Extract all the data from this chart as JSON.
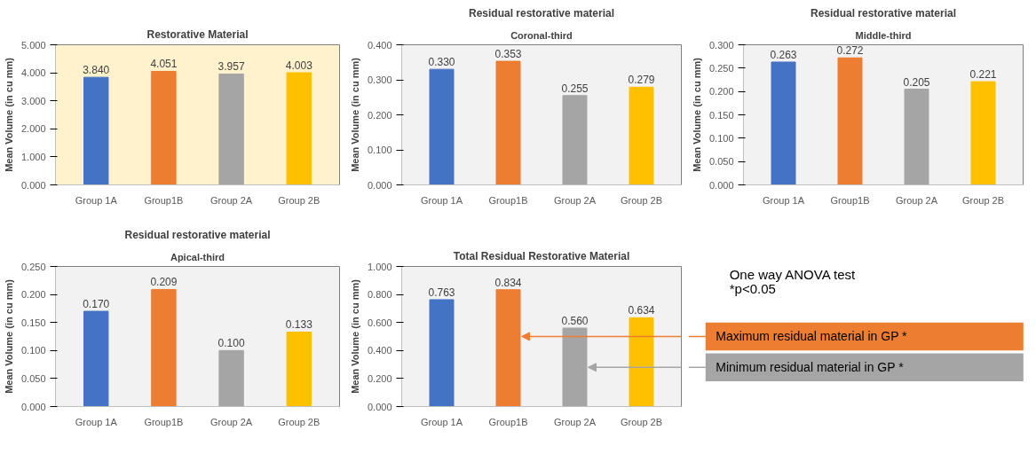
{
  "chart_data": [
    {
      "type": "bar",
      "title": "Restorative Material",
      "ylabel": "Mean Volume (in cu mm)",
      "categories": [
        "Group 1A",
        "Group1B",
        "Group 2A",
        "Group 2B"
      ],
      "values": [
        3.84,
        4.051,
        3.957,
        4.003
      ],
      "colors": [
        "#4472c4",
        "#ed7d31",
        "#a5a5a5",
        "#ffc000"
      ],
      "value_labels": [
        "3.840",
        "4.051",
        "3.957",
        "4.003"
      ],
      "ylim": [
        0,
        5
      ],
      "yticks": [
        {
          "value": 0,
          "label": "0.000"
        },
        {
          "value": 1,
          "label": "1.000"
        },
        {
          "value": 2,
          "label": "2.000"
        },
        {
          "value": 3,
          "label": "3.000"
        },
        {
          "value": 4,
          "label": "4.000"
        },
        {
          "value": 5,
          "label": "5.000"
        }
      ]
    },
    {
      "type": "bar",
      "title": "Residual restorative material",
      "subtitle": "Coronal-third",
      "ylabel": "Mean Volume (in cu mm)",
      "categories": [
        "Group 1A",
        "Group1B",
        "Group 2A",
        "Group 2B"
      ],
      "values": [
        0.33,
        0.353,
        0.255,
        0.279
      ],
      "colors": [
        "#4472c4",
        "#ed7d31",
        "#a5a5a5",
        "#ffc000"
      ],
      "value_labels": [
        "0.330",
        "0.353",
        "0.255",
        "0.279"
      ],
      "ylim": [
        0,
        0.4
      ],
      "yticks": [
        {
          "value": 0,
          "label": "0.000"
        },
        {
          "value": 0.1,
          "label": "0.100"
        },
        {
          "value": 0.2,
          "label": "0.200"
        },
        {
          "value": 0.3,
          "label": "0.300"
        },
        {
          "value": 0.4,
          "label": "0.400"
        }
      ]
    },
    {
      "type": "bar",
      "title": "Residual restorative material",
      "subtitle": "Middle-third",
      "ylabel": "Mean Volume (in cu mm)",
      "categories": [
        "Group 1A",
        "Group1B",
        "Group 2A",
        "Group 2B"
      ],
      "values": [
        0.263,
        0.272,
        0.205,
        0.221
      ],
      "colors": [
        "#4472c4",
        "#ed7d31",
        "#a5a5a5",
        "#ffc000"
      ],
      "value_labels": [
        "0.263",
        "0.272",
        "0.205",
        "0.221"
      ],
      "ylim": [
        0,
        0.3
      ],
      "yticks": [
        {
          "value": 0,
          "label": "0.000"
        },
        {
          "value": 0.05,
          "label": "0.050"
        },
        {
          "value": 0.1,
          "label": "0.100"
        },
        {
          "value": 0.15,
          "label": "0.150"
        },
        {
          "value": 0.2,
          "label": "0.200"
        },
        {
          "value": 0.25,
          "label": "0.250"
        },
        {
          "value": 0.3,
          "label": "0.300"
        }
      ]
    },
    {
      "type": "bar",
      "title": "Residual restorative material",
      "subtitle": "Apical-third",
      "ylabel": "Mean Volume (in cu mm)",
      "categories": [
        "Group 1A",
        "Group1B",
        "Group 2A",
        "Group 2B"
      ],
      "values": [
        0.17,
        0.209,
        0.1,
        0.133
      ],
      "colors": [
        "#4472c4",
        "#ed7d31",
        "#a5a5a5",
        "#ffc000"
      ],
      "value_labels": [
        "0.170",
        "0.209",
        "0.100",
        "0.133"
      ],
      "ylim": [
        0,
        0.25
      ],
      "yticks": [
        {
          "value": 0,
          "label": "0.000"
        },
        {
          "value": 0.05,
          "label": "0.050"
        },
        {
          "value": 0.1,
          "label": "0.100"
        },
        {
          "value": 0.15,
          "label": "0.150"
        },
        {
          "value": 0.2,
          "label": "0.200"
        },
        {
          "value": 0.25,
          "label": "0.250"
        }
      ]
    },
    {
      "type": "bar",
      "title": "Total Residual Restorative Material",
      "ylabel": "Mean Volume (in cu mm)",
      "categories": [
        "Group 1A",
        "Group1B",
        "Group 2A",
        "Group 2B"
      ],
      "values": [
        0.763,
        0.834,
        0.56,
        0.634
      ],
      "colors": [
        "#4472c4",
        "#ed7d31",
        "#a5a5a5",
        "#ffc000"
      ],
      "value_labels": [
        "0.763",
        "0.834",
        "0.560",
        "0.634"
      ],
      "ylim": [
        0,
        1
      ],
      "yticks": [
        {
          "value": 0,
          "label": "0.000"
        },
        {
          "value": 0.2,
          "label": "0.200"
        },
        {
          "value": 0.4,
          "label": "0.400"
        },
        {
          "value": 0.6,
          "label": "0.600"
        },
        {
          "value": 0.8,
          "label": "0.800"
        },
        {
          "value": 1,
          "label": "1.000"
        }
      ],
      "annotations": [
        "Maximum residual material in GP *",
        "Minimum residual material in GP *"
      ]
    },
    {
      "type": "other",
      "annotations": [
        "One way ANOVA test",
        "*p<0.05"
      ]
    }
  ]
}
